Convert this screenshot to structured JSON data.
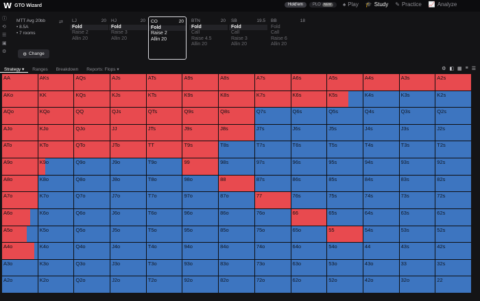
{
  "app": {
    "logo": "W",
    "name": "GTO Wizard"
  },
  "modes": [
    {
      "label": "Hold'em",
      "active": true
    },
    {
      "label": "PLO",
      "badge": "NEW",
      "active": false
    }
  ],
  "nav": [
    {
      "icon": "♠",
      "label": "Play",
      "active": false
    },
    {
      "icon": "🎓",
      "label": "Study",
      "active": true
    },
    {
      "icon": "✎",
      "label": "Practice",
      "active": false
    },
    {
      "icon": "📈",
      "label": "Analyze",
      "active": false
    }
  ],
  "game": {
    "title": "MTT Avg 20bb",
    "line1": "• 8.5A",
    "line2": "• 7 rooms",
    "change_label": "Change"
  },
  "positions": [
    {
      "name": "LJ",
      "stack": "20",
      "actions": [
        "Fold",
        "Raise 2",
        "Allin 20"
      ],
      "selected": 0
    },
    {
      "name": "HJ",
      "stack": "20",
      "actions": [
        "Fold",
        "Raise 3",
        "Allin 20"
      ],
      "selected": 0
    },
    {
      "name": "CO",
      "stack": "20",
      "actions": [
        "Fold",
        "Raise 2",
        "Allin 20"
      ],
      "selected": -1,
      "current": true
    },
    {
      "name": "BTN",
      "stack": "20",
      "actions": [
        "Fold",
        "Call",
        "Raise 4.5",
        "Allin 20"
      ],
      "selected": 0
    },
    {
      "name": "SB",
      "stack": "19.5",
      "actions": [
        "Fold",
        "Call",
        "Raise 3",
        "Allin 20"
      ],
      "selected": 0
    },
    {
      "name": "BB",
      "stack": "18",
      "actions": [
        "Fold",
        "Call",
        "Raise 6",
        "Allin 20"
      ],
      "selected": -1
    }
  ],
  "toolbar": {
    "tabs": [
      "Strategy",
      "Ranges",
      "Breakdown",
      "Reports: Flops"
    ],
    "active": 0
  },
  "colors": {
    "raise": "#e84a4f",
    "fold": "#3d75c0"
  },
  "grid": {
    "hands": [
      [
        "AA",
        "AKs",
        "AQs",
        "AJs",
        "ATs",
        "A9s",
        "A8s",
        "A7s",
        "A6s",
        "A5s",
        "A4s",
        "A3s",
        "A2s"
      ],
      [
        "AKo",
        "KK",
        "KQs",
        "KJs",
        "KTs",
        "K9s",
        "K8s",
        "K7s",
        "K6s",
        "K5s",
        "K4s",
        "K3s",
        "K2s"
      ],
      [
        "AQo",
        "KQo",
        "QQ",
        "QJs",
        "QTs",
        "Q9s",
        "Q8s",
        "Q7s",
        "Q6s",
        "Q5s",
        "Q4s",
        "Q3s",
        "Q2s"
      ],
      [
        "AJo",
        "KJo",
        "QJo",
        "JJ",
        "JTs",
        "J9s",
        "J8s",
        "J7s",
        "J6s",
        "J5s",
        "J4s",
        "J3s",
        "J2s"
      ],
      [
        "ATo",
        "KTo",
        "QTo",
        "JTo",
        "TT",
        "T9s",
        "T8s",
        "T7s",
        "T6s",
        "T5s",
        "T4s",
        "T3s",
        "T2s"
      ],
      [
        "A9o",
        "K9o",
        "Q9o",
        "J9o",
        "T9o",
        "99",
        "98s",
        "97s",
        "96s",
        "95s",
        "94s",
        "93s",
        "92s"
      ],
      [
        "A8o",
        "K8o",
        "Q8o",
        "J8o",
        "T8o",
        "98o",
        "88",
        "87s",
        "86s",
        "85s",
        "84s",
        "83s",
        "82s"
      ],
      [
        "A7o",
        "K7o",
        "Q7o",
        "J7o",
        "T7o",
        "97o",
        "87o",
        "77",
        "76s",
        "75s",
        "74s",
        "73s",
        "72s"
      ],
      [
        "A6o",
        "K6o",
        "Q6o",
        "J6o",
        "T6o",
        "96o",
        "86o",
        "76o",
        "66",
        "65s",
        "64s",
        "63s",
        "62s"
      ],
      [
        "A5o",
        "K5o",
        "Q5o",
        "J5o",
        "T5o",
        "95o",
        "85o",
        "75o",
        "65o",
        "55",
        "54s",
        "53s",
        "52s"
      ],
      [
        "A4o",
        "K4o",
        "Q4o",
        "J4o",
        "T4o",
        "94o",
        "84o",
        "74o",
        "64o",
        "54o",
        "44",
        "43s",
        "42s"
      ],
      [
        "A3o",
        "K3o",
        "Q3o",
        "J3o",
        "T3o",
        "93o",
        "83o",
        "73o",
        "63o",
        "53o",
        "43o",
        "33",
        "32s"
      ],
      [
        "A2o",
        "K2o",
        "Q2o",
        "J2o",
        "T2o",
        "92o",
        "82o",
        "72o",
        "62o",
        "52o",
        "42o",
        "32o",
        "22"
      ]
    ],
    "raise_freq": [
      [
        1,
        1,
        1,
        1,
        1,
        1,
        1,
        1,
        1,
        1,
        1,
        1,
        1
      ],
      [
        1,
        1,
        1,
        1,
        1,
        1,
        1,
        1,
        1,
        0.6,
        0,
        0,
        0
      ],
      [
        1,
        1,
        1,
        1,
        1,
        1,
        1,
        0,
        0,
        0,
        0,
        0,
        0
      ],
      [
        1,
        1,
        1,
        1,
        1,
        1,
        1,
        0,
        0,
        0,
        0,
        0,
        0
      ],
      [
        1,
        1,
        1,
        1,
        1,
        1,
        0,
        0,
        0,
        0,
        0,
        0,
        0
      ],
      [
        1,
        0.2,
        0,
        0,
        0,
        1,
        0,
        0,
        0,
        0,
        0,
        0,
        0
      ],
      [
        1,
        0,
        0,
        0,
        0,
        0,
        1,
        0,
        0,
        0,
        0,
        0,
        0
      ],
      [
        1,
        0,
        0,
        0,
        0,
        0,
        0,
        1,
        0,
        0,
        0,
        0,
        0
      ],
      [
        0.8,
        0,
        0,
        0,
        0,
        0,
        0,
        0,
        1,
        0,
        0,
        0,
        0
      ],
      [
        0.7,
        0,
        0,
        0,
        0,
        0,
        0,
        0,
        0,
        1,
        0,
        0,
        0
      ],
      [
        0.9,
        0,
        0,
        0,
        0,
        0,
        0,
        0,
        0,
        0,
        0,
        0,
        0
      ],
      [
        0,
        0,
        0,
        0,
        0,
        0,
        0,
        0,
        0,
        0,
        0,
        0,
        0
      ],
      [
        0,
        0,
        0,
        0,
        0,
        0,
        0,
        0,
        0,
        0,
        0,
        0,
        0
      ]
    ]
  }
}
